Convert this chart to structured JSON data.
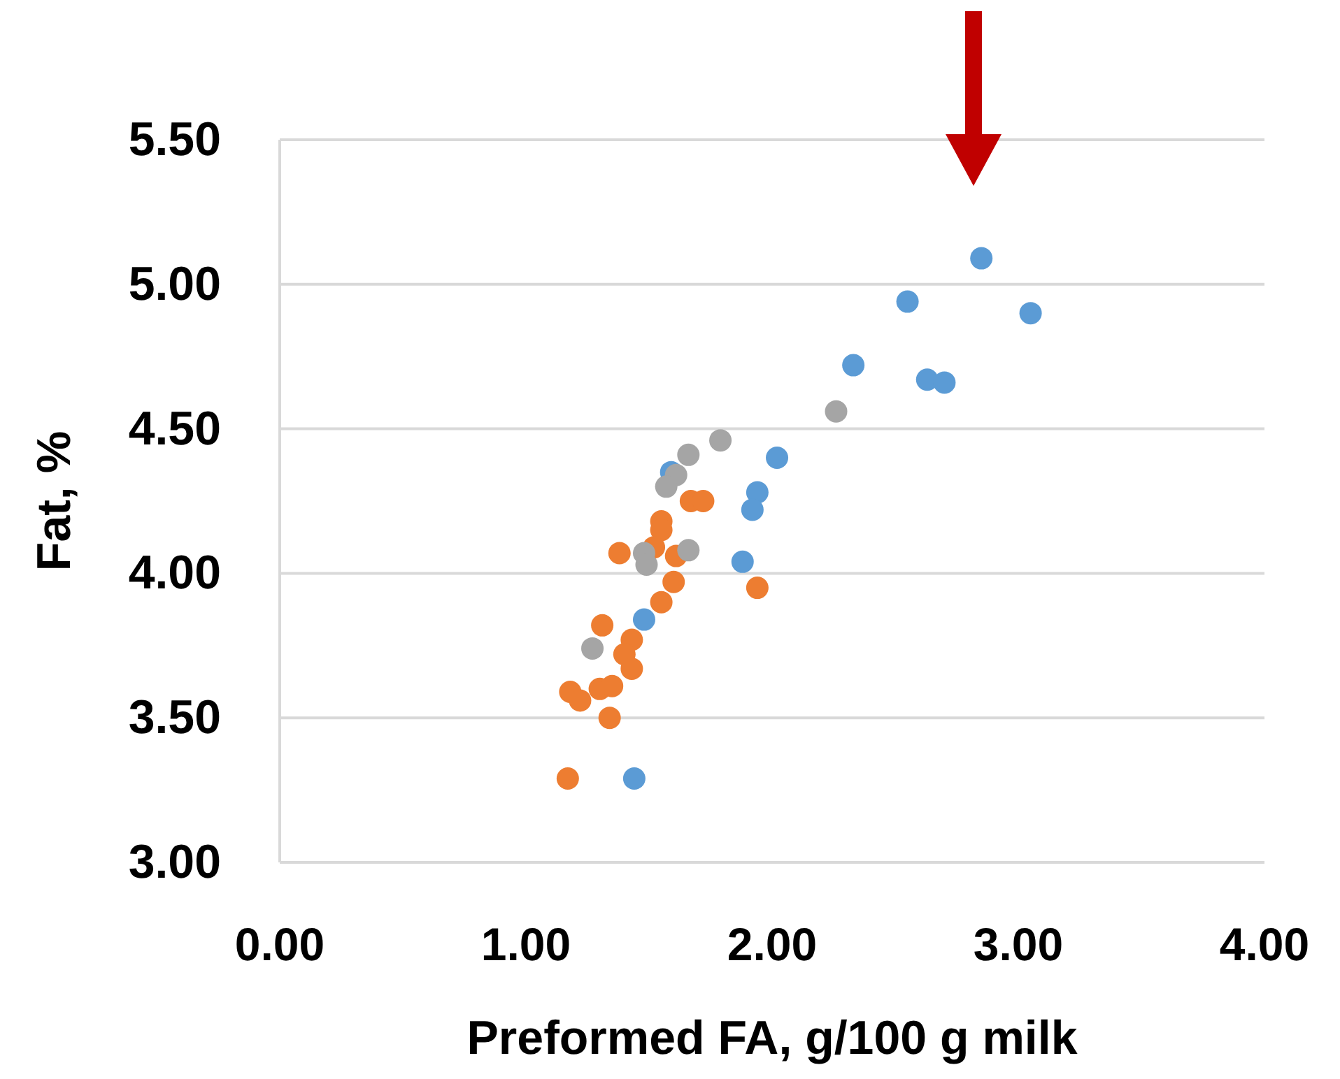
{
  "chart_data": {
    "type": "scatter",
    "xlabel": "Preformed FA, g/100 g  milk",
    "ylabel": "Fat, %",
    "xlim": [
      0,
      4
    ],
    "ylim": [
      3,
      5.5
    ],
    "xticks": [
      {
        "value": 0,
        "label": "0.00"
      },
      {
        "value": 1,
        "label": "1.00"
      },
      {
        "value": 2,
        "label": "2.00"
      },
      {
        "value": 3,
        "label": "3.00"
      },
      {
        "value": 4,
        "label": "4.00"
      }
    ],
    "yticks": [
      {
        "value": 3,
        "label": "3.00"
      },
      {
        "value": 3.5,
        "label": "3.50"
      },
      {
        "value": 4,
        "label": "4.00"
      },
      {
        "value": 4.5,
        "label": "4.50"
      },
      {
        "value": 5,
        "label": "5.00"
      },
      {
        "value": 5.5,
        "label": "5.50"
      }
    ],
    "grid": "y",
    "marker": "circle",
    "series": [
      {
        "color": "#5b9bd5",
        "x": [
          2.85,
          2.55,
          3.05,
          2.33,
          2.63,
          2.7,
          2.02,
          1.94,
          1.92,
          1.88,
          1.48,
          1.44,
          1.59
        ],
        "values": [
          5.09,
          4.94,
          4.9,
          4.72,
          4.67,
          4.66,
          4.4,
          4.28,
          4.22,
          4.04,
          3.84,
          3.29,
          4.35
        ]
      },
      {
        "color": "#ed7d31",
        "x": [
          1.67,
          1.72,
          1.55,
          1.55,
          1.38,
          1.52,
          1.61,
          1.6,
          1.55,
          1.94,
          1.31,
          1.43,
          1.4,
          1.43,
          1.18,
          1.22,
          1.3,
          1.35,
          1.34,
          1.17
        ],
        "values": [
          4.25,
          4.25,
          4.18,
          4.15,
          4.07,
          4.09,
          4.06,
          3.97,
          3.9,
          3.95,
          3.82,
          3.77,
          3.72,
          3.67,
          3.59,
          3.56,
          3.6,
          3.61,
          3.5,
          3.29
        ]
      },
      {
        "color": "#a5a5a5",
        "x": [
          2.26,
          1.79,
          1.66,
          1.61,
          1.57,
          1.66,
          1.48,
          1.49,
          1.27
        ],
        "values": [
          4.56,
          4.46,
          4.41,
          4.34,
          4.3,
          4.08,
          4.07,
          4.03,
          3.74
        ]
      }
    ]
  }
}
